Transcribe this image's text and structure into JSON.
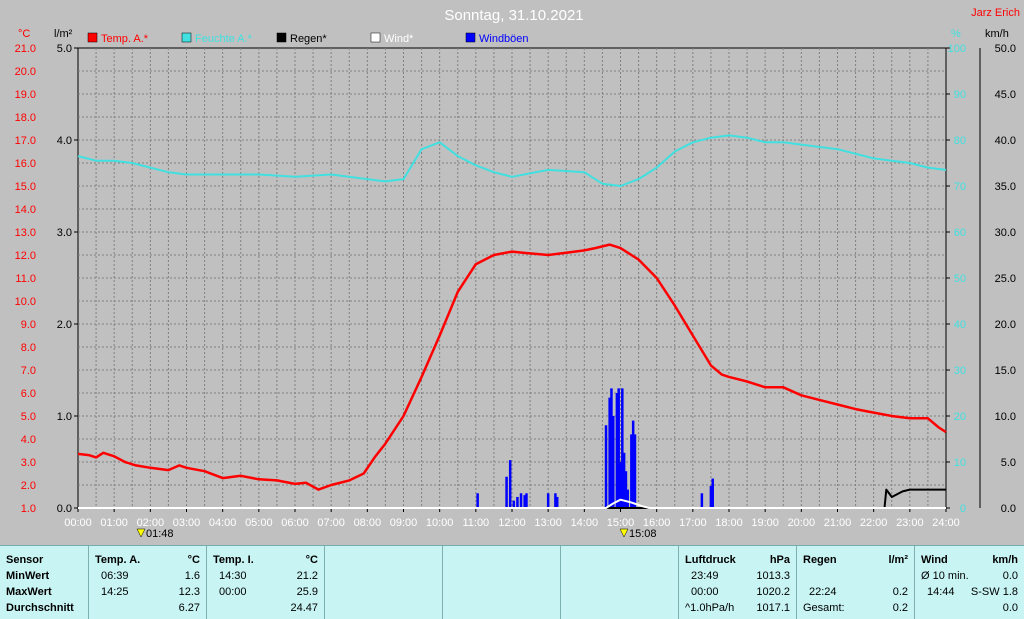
{
  "header": {
    "title": "Sonntag, 31.10.2021",
    "author": "Jarz Erich",
    "unit_left_temp": "°C",
    "unit_left_rain": "l/m²",
    "unit_right_hum": "%",
    "unit_right_wind": "km/h",
    "marker_left_time": "01:48",
    "marker_right_time": "15:08"
  },
  "colors": {
    "temp": "#ff0000",
    "humidity": "#40e0e0",
    "rain": "#000000",
    "wind": "#ffffff",
    "gust": "#0000ff",
    "background": "#c0c0c0"
  },
  "chart_data": {
    "type": "line",
    "x_ticks": [
      "00:00",
      "01:00",
      "02:00",
      "03:00",
      "04:00",
      "05:00",
      "06:00",
      "07:00",
      "08:00",
      "09:00",
      "10:00",
      "11:00",
      "12:00",
      "13:00",
      "14:00",
      "15:00",
      "16:00",
      "17:00",
      "18:00",
      "19:00",
      "20:00",
      "21:00",
      "22:00",
      "23:00",
      "24:00"
    ],
    "xlim": [
      0,
      24
    ],
    "temp_ticks": [
      "1.0",
      "2.0",
      "3.0",
      "4.0",
      "5.0",
      "6.0",
      "7.0",
      "8.0",
      "9.0",
      "10.0",
      "11.0",
      "12.0",
      "13.0",
      "14.0",
      "15.0",
      "16.0",
      "17.0",
      "18.0",
      "19.0",
      "20.0",
      "21.0"
    ],
    "temp_lim": [
      1,
      21
    ],
    "rain_ticks": [
      "0.0",
      "1.0",
      "2.0",
      "3.0",
      "4.0",
      "5.0"
    ],
    "rain_lim": [
      0,
      5
    ],
    "hum_ticks": [
      "0",
      "10",
      "20",
      "30",
      "40",
      "50",
      "60",
      "70",
      "80",
      "90",
      "100"
    ],
    "hum_lim": [
      0,
      100
    ],
    "wind_ticks": [
      "0.0",
      "5.0",
      "10.0",
      "15.0",
      "20.0",
      "25.0",
      "30.0",
      "35.0",
      "40.0",
      "45.0",
      "50.0"
    ],
    "wind_lim": [
      0,
      50
    ],
    "legend": [
      "Temp. A.*",
      "Feuchte A.*",
      "Regen*",
      "Wind*",
      "Windböen"
    ],
    "series": [
      {
        "name": "Temp. A.*",
        "axis": "temp",
        "x": [
          0,
          0.3,
          0.5,
          0.7,
          1.0,
          1.3,
          1.6,
          2.0,
          2.5,
          2.8,
          3.0,
          3.5,
          4.0,
          4.5,
          5.0,
          5.5,
          6.0,
          6.3,
          6.65,
          7.0,
          7.5,
          7.9,
          8.2,
          8.5,
          9.0,
          9.5,
          10.0,
          10.5,
          11.0,
          11.5,
          12.0,
          12.3,
          13.0,
          13.5,
          14.0,
          14.3,
          14.7,
          15.0,
          15.5,
          16.0,
          16.5,
          17.0,
          17.5,
          17.8,
          18.0,
          18.5,
          19.0,
          19.5,
          20.0,
          20.5,
          21.0,
          21.5,
          22.0,
          22.5,
          23.0,
          23.5,
          23.8,
          24.0
        ],
        "values": [
          3.35,
          3.3,
          3.2,
          3.4,
          3.25,
          3.0,
          2.85,
          2.75,
          2.65,
          2.85,
          2.75,
          2.6,
          2.3,
          2.4,
          2.25,
          2.2,
          2.05,
          2.1,
          1.8,
          2.0,
          2.2,
          2.5,
          3.2,
          3.8,
          5.0,
          6.7,
          8.5,
          10.4,
          11.6,
          12.0,
          12.15,
          12.1,
          12.0,
          12.1,
          12.2,
          12.3,
          12.45,
          12.3,
          11.8,
          11.0,
          9.8,
          8.5,
          7.2,
          6.8,
          6.7,
          6.5,
          6.25,
          6.25,
          5.9,
          5.7,
          5.5,
          5.3,
          5.15,
          5.0,
          4.9,
          4.9,
          4.5,
          4.3
        ]
      },
      {
        "name": "Feuchte A.*",
        "axis": "hum",
        "x": [
          0,
          0.5,
          1.0,
          1.5,
          2.0,
          2.5,
          3.0,
          4.0,
          5.0,
          6.0,
          7.0,
          8.0,
          8.5,
          9.0,
          9.5,
          10.0,
          10.5,
          11.0,
          11.5,
          12.0,
          13.0,
          14.0,
          14.5,
          15.0,
          15.5,
          16.0,
          16.5,
          17.0,
          17.5,
          18.0,
          18.5,
          19.0,
          19.5,
          20.0,
          21.0,
          22.0,
          23.0,
          23.5,
          24.0
        ],
        "values": [
          76.5,
          75.5,
          75.5,
          75,
          74,
          73,
          72.5,
          72.5,
          72.5,
          72,
          72.5,
          71.5,
          71,
          71.5,
          78,
          79.5,
          76.5,
          74.5,
          73,
          72,
          73.5,
          73,
          70.5,
          70,
          71.5,
          74,
          77.5,
          79.5,
          80.5,
          81,
          80.5,
          79.5,
          79.5,
          79,
          78,
          76,
          75,
          74,
          73.5
        ]
      },
      {
        "name": "Regen*",
        "axis": "rain",
        "x": [
          0,
          22.3,
          22.35,
          22.5,
          22.8,
          23.0,
          23.5,
          24.0
        ],
        "values": [
          0,
          0,
          0.2,
          0.12,
          0.18,
          0.2,
          0.2,
          0.2
        ]
      },
      {
        "name": "Wind*",
        "axis": "wind",
        "x": [
          0,
          14.6,
          14.8,
          15.0,
          15.3,
          15.6,
          15.8,
          24.0
        ],
        "values": [
          0,
          0,
          0.5,
          0.9,
          0.6,
          0.2,
          0,
          0
        ]
      },
      {
        "name": "Windböen",
        "axis": "wind",
        "bars": [
          [
            11.05,
            1.6
          ],
          [
            11.85,
            3.4
          ],
          [
            11.95,
            5.2
          ],
          [
            12.05,
            0.8
          ],
          [
            12.15,
            1.2
          ],
          [
            12.25,
            1.6
          ],
          [
            12.35,
            1.4
          ],
          [
            12.4,
            1.6
          ],
          [
            13.0,
            1.6
          ],
          [
            13.2,
            1.6
          ],
          [
            13.25,
            1.2
          ],
          [
            14.6,
            9.0
          ],
          [
            14.7,
            12.0
          ],
          [
            14.75,
            13.0
          ],
          [
            14.8,
            10.0
          ],
          [
            14.9,
            12.5
          ],
          [
            14.95,
            13.0
          ],
          [
            15.0,
            5.0
          ],
          [
            15.05,
            13.0
          ],
          [
            15.1,
            6.0
          ],
          [
            15.15,
            4.0
          ],
          [
            15.2,
            2.0
          ],
          [
            15.3,
            8.0
          ],
          [
            15.35,
            9.5
          ],
          [
            15.4,
            8.0
          ],
          [
            17.25,
            1.6
          ],
          [
            17.5,
            2.4
          ],
          [
            17.55,
            3.2
          ]
        ]
      }
    ]
  },
  "stats": {
    "sensor": {
      "h_sensor": "Sensor",
      "min": "MinWert",
      "max": "MaxWert",
      "avg": "Durchschnitt"
    },
    "tempA": {
      "h": "Temp. A.",
      "u": "°C",
      "min_t": "06:39",
      "min_v": "1.6",
      "max_t": "14:25",
      "max_v": "12.3",
      "avg_v": "6.27"
    },
    "tempI": {
      "h": "Temp. I.",
      "u": "°C",
      "min_t": "14:30",
      "min_v": "21.2",
      "max_t": "00:00",
      "max_v": "25.9",
      "avg_v": "24.47"
    },
    "pressure": {
      "h": "Luftdruck",
      "u": "hPa",
      "min_t": "23:49",
      "min_v": "1013.3",
      "max_t": "00:00",
      "max_v": "1020.2",
      "avg_l": "^1.0hPa/h",
      "avg_v": "1017.1"
    },
    "rain": {
      "h": "Regen",
      "u": "l/m²",
      "max_t": "22:24",
      "max_v": "0.2",
      "avg_l": "Gesamt:",
      "avg_v": "0.2"
    },
    "wind": {
      "h": "Wind",
      "u": "km/h",
      "min_l": "Ø 10 min.",
      "min_v": "0.0",
      "max_t": "14:44",
      "max_v": "S-SW 1.8",
      "avg_v": "0.0"
    }
  }
}
